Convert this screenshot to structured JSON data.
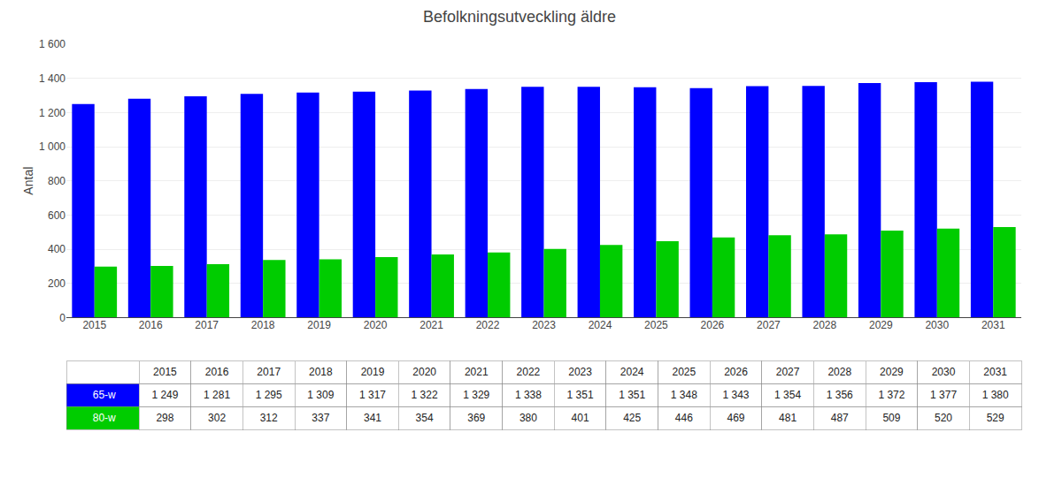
{
  "chart_data": {
    "type": "bar",
    "title": "Befolkningsutveckling äldre",
    "ylabel": "Antal",
    "categories": [
      "2015",
      "2016",
      "2017",
      "2018",
      "2019",
      "2020",
      "2021",
      "2022",
      "2023",
      "2024",
      "2025",
      "2026",
      "2027",
      "2028",
      "2029",
      "2030",
      "2031"
    ],
    "series": [
      {
        "name": "65-w",
        "color": "#0000FF",
        "values": [
          1249,
          1281,
          1295,
          1309,
          1317,
          1322,
          1329,
          1338,
          1351,
          1351,
          1348,
          1343,
          1354,
          1356,
          1372,
          1377,
          1380
        ],
        "value_labels": [
          "1 249",
          "1 281",
          "1 295",
          "1 309",
          "1 317",
          "1 322",
          "1 329",
          "1 338",
          "1 351",
          "1 351",
          "1 348",
          "1 343",
          "1 354",
          "1 356",
          "1 372",
          "1 377",
          "1 380"
        ]
      },
      {
        "name": "80-w",
        "color": "#00CC00",
        "values": [
          298,
          302,
          312,
          337,
          341,
          354,
          369,
          380,
          401,
          425,
          446,
          469,
          481,
          487,
          509,
          520,
          529
        ],
        "value_labels": [
          "298",
          "302",
          "312",
          "337",
          "341",
          "354",
          "369",
          "380",
          "401",
          "425",
          "446",
          "469",
          "481",
          "487",
          "509",
          "520",
          "529"
        ]
      }
    ],
    "ylim": [
      0,
      1600
    ],
    "yticks": [
      0,
      200,
      400,
      600,
      800,
      {
        "value": 1000,
        "label": "1 000"
      },
      {
        "value": 1200,
        "label": "1 200"
      },
      {
        "value": 1400,
        "label": "1 400"
      },
      {
        "value": 1600,
        "label": "1 600"
      }
    ],
    "grid": true
  }
}
